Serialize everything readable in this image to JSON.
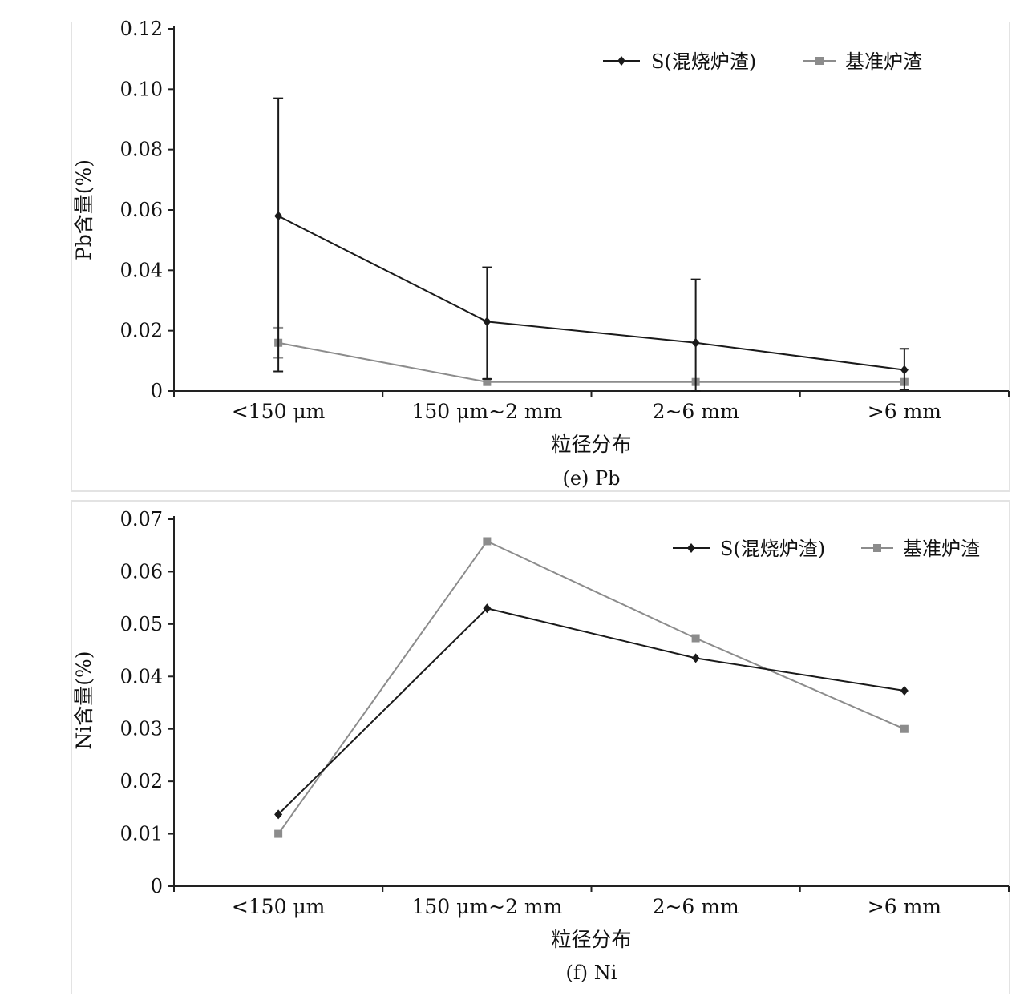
{
  "colors": {
    "series_s": "#1a1a1a",
    "series_base": "#8c8c8c",
    "axis": "#222222"
  },
  "chart_data": [
    {
      "type": "line",
      "caption": "(e) Pb",
      "xlabel": "粒径分布",
      "ylabel": "Pb含量(%)",
      "categories": [
        "<150 μm",
        "150 μm~2 mm",
        "2~6 mm",
        ">6 mm"
      ],
      "ylim": [
        0,
        0.12
      ],
      "yticks": [
        "0",
        "0.02",
        "0.04",
        "0.06",
        "0.08",
        "0.10",
        "0.12"
      ],
      "legend_position": "top-right",
      "grid": false,
      "series": [
        {
          "name": "S(混烧炉渣)",
          "values": [
            0.058,
            0.023,
            0.016,
            0.007
          ],
          "error_low": [
            0.0065,
            0.004,
            0.0,
            0.0005
          ],
          "error_high": [
            0.097,
            0.041,
            0.037,
            0.014
          ],
          "color": "#1a1a1a",
          "marker": "diamond"
        },
        {
          "name": "基准炉渣",
          "values": [
            0.016,
            0.003,
            0.003,
            0.003
          ],
          "error_low": [
            0.011,
            0.003,
            0.003,
            0.003
          ],
          "error_high": [
            0.021,
            0.003,
            0.003,
            0.003
          ],
          "color": "#8c8c8c",
          "marker": "square"
        }
      ]
    },
    {
      "type": "line",
      "caption": "(f) Ni",
      "xlabel": "粒径分布",
      "ylabel": "Ni含量(%)",
      "categories": [
        "<150 μm",
        "150 μm~2 mm",
        "2~6 mm",
        ">6 mm"
      ],
      "ylim": [
        0,
        0.07
      ],
      "yticks": [
        "0",
        "0.01",
        "0.02",
        "0.03",
        "0.04",
        "0.05",
        "0.06",
        "0.07"
      ],
      "legend_position": "top-right",
      "grid": false,
      "series": [
        {
          "name": "S(混烧炉渣)",
          "values": [
            0.0137,
            0.053,
            0.0435,
            0.0373
          ],
          "color": "#1a1a1a",
          "marker": "diamond"
        },
        {
          "name": "基准炉渣",
          "values": [
            0.01,
            0.0658,
            0.0473,
            0.03
          ],
          "color": "#8c8c8c",
          "marker": "square"
        }
      ]
    }
  ]
}
